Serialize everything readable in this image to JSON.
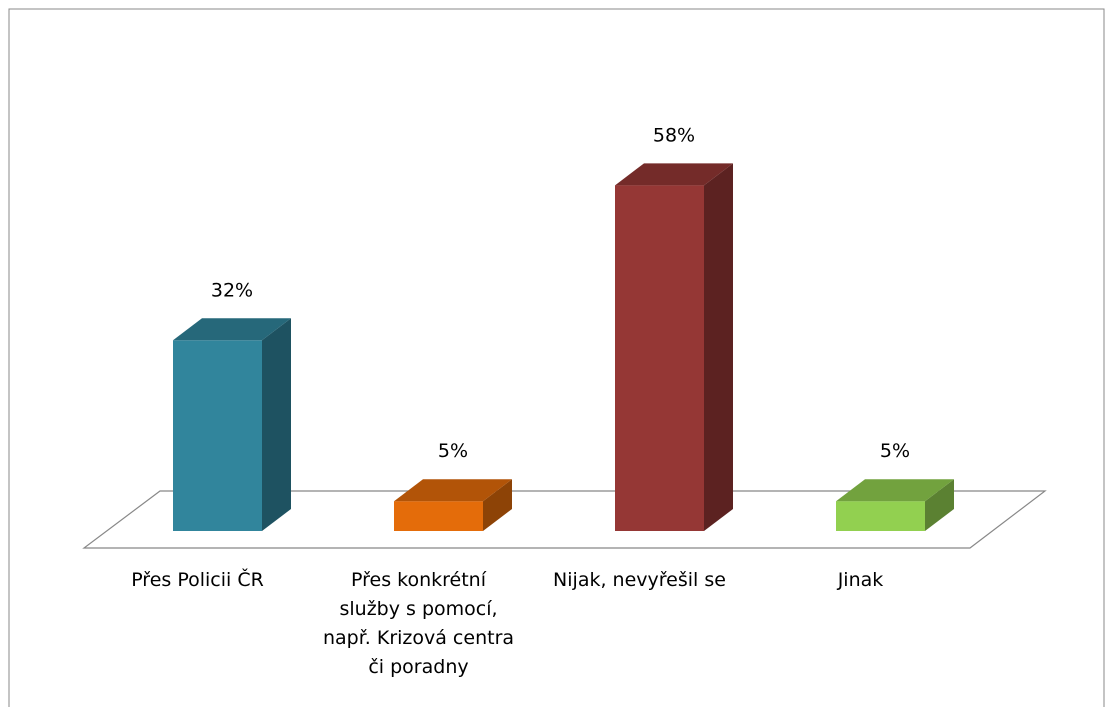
{
  "chart_data": {
    "type": "bar3d",
    "categories": [
      "Přes Policii ČR",
      "Přes konkrétní služby s pomocí, např. Krizová centra či poradny",
      "Nijak, nevyřešil se",
      "Jinak"
    ],
    "values": [
      32,
      5,
      58,
      5
    ],
    "value_labels": [
      "32%",
      "5%",
      "58%",
      "5%"
    ],
    "colors": [
      "#31859c",
      "#e46c0a",
      "#953735",
      "#92d050"
    ]
  }
}
